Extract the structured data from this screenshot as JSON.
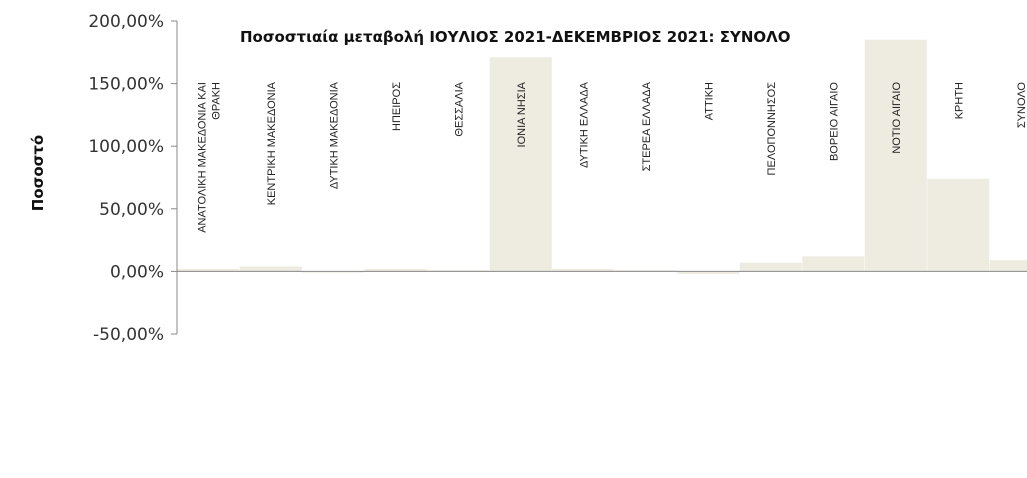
{
  "chart_data": {
    "type": "bar",
    "title": "Ποσοστιαία μεταβολή  ΙΟΥΛΙΟΣ 2021-ΔΕΚΕΜΒΡΙΟΣ 2021: ΣΥΝΟΛΟ",
    "xlabel": "",
    "ylabel": "Ποσοστό",
    "ylim": [
      -50,
      200
    ],
    "yticks": [
      "200,00%",
      "150,00%",
      "100,00%",
      "50,00%",
      "0,00%",
      "-50,00%"
    ],
    "ytick_values": [
      200,
      150,
      100,
      50,
      0,
      -50
    ],
    "categories": [
      [
        "ΑΝΑΤΟΛΙΚΗ ΜΑΚΕΔΟΝΙΑ ΚΑΙ",
        "ΘΡΑΚΗ"
      ],
      [
        "ΚΕΝΤΡΙΚΗ ΜΑΚΕΔΟΝΙΑ"
      ],
      [
        "ΔΥΤΙΚΗ ΜΑΚΕΔΟΝΙΑ"
      ],
      [
        "ΗΠΕΙΡΟΣ"
      ],
      [
        "ΘΕΣΣΑΛΙΑ"
      ],
      [
        "ΙΟΝΙΑ ΝΗΣΙΑ"
      ],
      [
        "ΔΥΤΙΚΗ ΕΛΛΑΔΑ"
      ],
      [
        "ΣΤΕΡΕΑ ΕΛΛΑΔΑ"
      ],
      [
        "ΑΤΤΙΚΗ"
      ],
      [
        "ΠΕΛΟΠΟΝΝΗΣΟΣ"
      ],
      [
        "ΒΟΡΕΙΟ ΑΙΓΑΙΟ"
      ],
      [
        "ΝΟΤΙΟ ΑΙΓΑΙΟ"
      ],
      [
        "ΚΡΗΤΗ"
      ],
      [
        "ΣΥΝΟΛΟ"
      ]
    ],
    "values": [
      2,
      4,
      -1,
      2,
      1,
      171,
      2,
      1,
      -2,
      7,
      12,
      185,
      74,
      9
    ],
    "bar_color": "#eeebe1",
    "axis_color": "#888888",
    "grid": false,
    "legend": "none"
  }
}
